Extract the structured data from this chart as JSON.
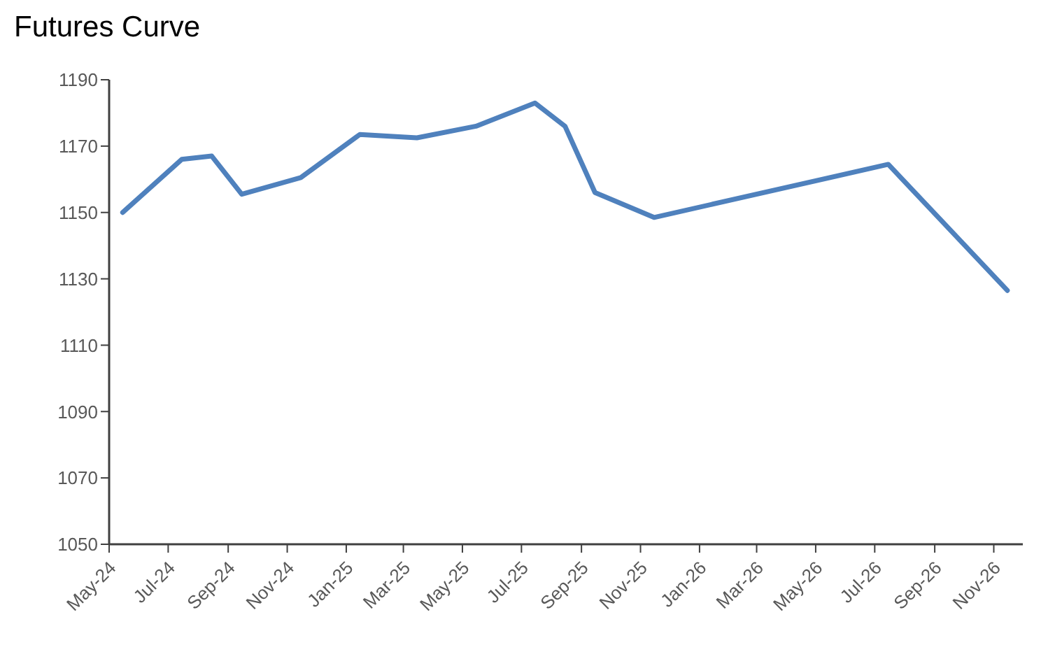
{
  "chart_data": {
    "type": "line",
    "title": "Futures Curve",
    "x": [
      "2024-05-15",
      "2024-07-15",
      "2024-08-15",
      "2024-09-15",
      "2024-11-15",
      "2025-01-15",
      "2025-03-15",
      "2025-05-15",
      "2025-07-15",
      "2025-08-15",
      "2025-09-15",
      "2025-11-15",
      "2026-07-15",
      "2026-11-15"
    ],
    "series": [
      {
        "color": "#4f81bd",
        "values": [
          1150,
          1166,
          1167,
          1155.5,
          1160.5,
          1173.5,
          1172.5,
          1176,
          1183,
          1176,
          1156,
          1148.5,
          1164.5,
          1126.5
        ]
      }
    ],
    "xlim": [
      "2024-05-01",
      "2026-12-01"
    ],
    "xticks": [
      {
        "value": "2024-05-01",
        "label": "May-24"
      },
      {
        "value": "2024-07-01",
        "label": "Jul-24"
      },
      {
        "value": "2024-09-01",
        "label": "Sep-24"
      },
      {
        "value": "2024-11-01",
        "label": "Nov-24"
      },
      {
        "value": "2025-01-01",
        "label": "Jan-25"
      },
      {
        "value": "2025-03-01",
        "label": "Mar-25"
      },
      {
        "value": "2025-05-01",
        "label": "May-25"
      },
      {
        "value": "2025-07-01",
        "label": "Jul-25"
      },
      {
        "value": "2025-09-01",
        "label": "Sep-25"
      },
      {
        "value": "2025-11-01",
        "label": "Nov-25"
      },
      {
        "value": "2026-01-01",
        "label": "Jan-26"
      },
      {
        "value": "2026-03-01",
        "label": "Mar-26"
      },
      {
        "value": "2026-05-01",
        "label": "May-26"
      },
      {
        "value": "2026-07-01",
        "label": "Jul-26"
      },
      {
        "value": "2026-09-01",
        "label": "Sep-26"
      },
      {
        "value": "2026-11-01",
        "label": "Nov-26"
      }
    ],
    "ylim": [
      1050,
      1190
    ],
    "yticks": [
      1050,
      1070,
      1090,
      1110,
      1130,
      1150,
      1170,
      1190
    ],
    "grid": false,
    "legend": false,
    "marker": "none",
    "line_style": "solid"
  }
}
